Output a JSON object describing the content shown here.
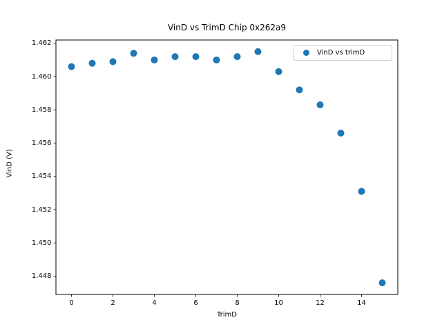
{
  "chart_data": {
    "type": "scatter",
    "title": "VinD vs TrimD Chip 0x262a9",
    "xlabel": "TrimD",
    "ylabel": "VinD (V)",
    "x": [
      0,
      1,
      2,
      3,
      4,
      5,
      6,
      7,
      8,
      9,
      10,
      11,
      12,
      13,
      14,
      15
    ],
    "y": [
      1.4606,
      1.4608,
      1.4609,
      1.4614,
      1.461,
      1.4612,
      1.4612,
      1.461,
      1.4612,
      1.4615,
      1.4603,
      1.4592,
      1.4583,
      1.4566,
      1.4531,
      1.4476
    ],
    "xlim": [
      -0.75,
      15.75
    ],
    "ylim": [
      1.4469,
      1.4622
    ],
    "xticks": {
      "values": [
        0,
        2,
        4,
        6,
        8,
        10,
        12,
        14
      ],
      "labels": [
        "0",
        "2",
        "4",
        "6",
        "8",
        "10",
        "12",
        "14"
      ]
    },
    "yticks": {
      "values": [
        1.448,
        1.45,
        1.452,
        1.454,
        1.456,
        1.458,
        1.46,
        1.462
      ],
      "labels": [
        "1.448",
        "1.450",
        "1.452",
        "1.454",
        "1.456",
        "1.458",
        "1.460",
        "1.462"
      ]
    },
    "grid": false,
    "legend": {
      "position": "upper right",
      "entries": [
        {
          "label": "VinD vs trimD",
          "marker_color": "#1f77b4"
        }
      ]
    },
    "marker": {
      "shape": "circle",
      "color": "#1f77b4",
      "radius_px": 5
    },
    "colors": {
      "spine": "#000000",
      "background": "#ffffff",
      "text": "#000000"
    }
  }
}
